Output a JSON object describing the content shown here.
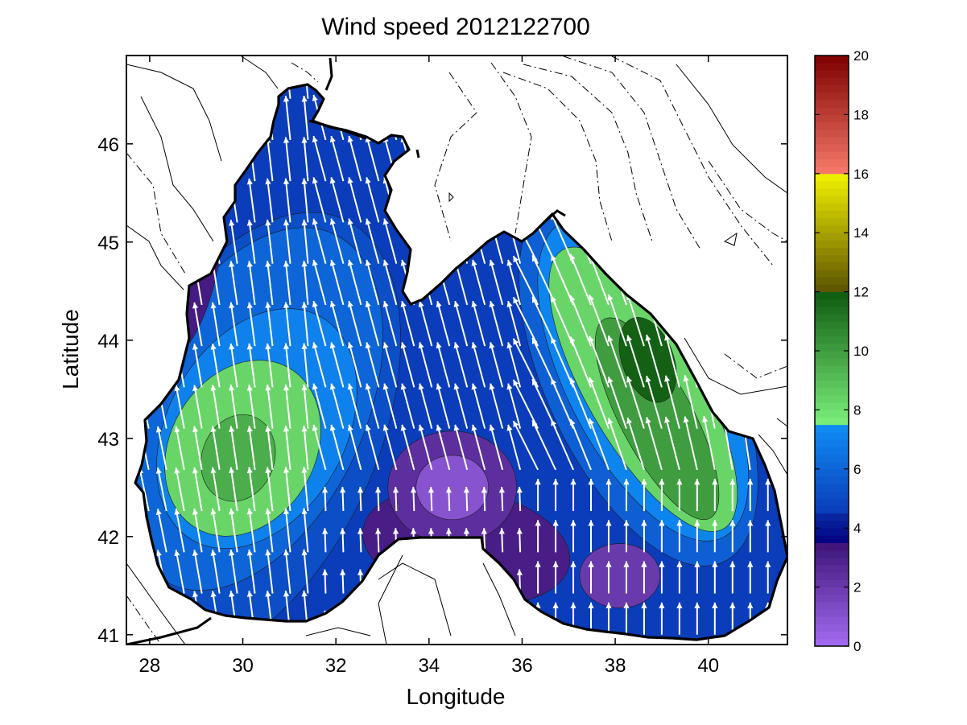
{
  "chart_data": {
    "type": "heatmap",
    "title": "Wind speed 2012122700",
    "xlabel": "Longitude",
    "ylabel": "Latitude",
    "xlim": [
      27.5,
      41.7
    ],
    "ylim": [
      40.9,
      46.9
    ],
    "xticks": [
      28,
      30,
      32,
      34,
      36,
      38,
      40
    ],
    "yticks": [
      41,
      42,
      43,
      44,
      45,
      46
    ],
    "grid": false,
    "colorbar": {
      "range": [
        0,
        20
      ],
      "ticks": [
        0,
        2,
        4,
        6,
        8,
        10,
        12,
        14,
        16,
        18,
        20
      ],
      "bands": [
        {
          "from": 0,
          "to": 3.5,
          "from_color": "#a56df2",
          "to_color": "#3c1378"
        },
        {
          "from": 3.5,
          "to": 4.5,
          "from_color": "#00007e",
          "to_color": "#0a2aa5"
        },
        {
          "from": 4.5,
          "to": 7.5,
          "from_color": "#0b3ab8",
          "to_color": "#0f8ff6"
        },
        {
          "from": 7.5,
          "to": 12,
          "from_color": "#7cf07c",
          "to_color": "#0f5a10"
        },
        {
          "from": 12,
          "to": 16,
          "from_color": "#5c5200",
          "to_color": "#f2f200"
        },
        {
          "from": 16,
          "to": 20,
          "from_color": "#f77a6a",
          "to_color": "#7e0000"
        }
      ]
    },
    "wind_maxima": [
      {
        "lon": 30.0,
        "lat": 42.8,
        "speed": 9.5
      },
      {
        "lon": 38.7,
        "lat": 43.8,
        "speed": 11.8
      },
      {
        "lon": 39.4,
        "lat": 42.8,
        "speed": 9.2
      }
    ],
    "wind_minima": [
      {
        "lon": 34.5,
        "lat": 42.5,
        "speed": 1.0
      },
      {
        "lon": 28.8,
        "lat": 44.4,
        "speed": 2.2
      },
      {
        "lon": 38.0,
        "lat": 41.6,
        "speed": 2.0
      }
    ],
    "wind_direction": "flow from south and south-southwest toward north over most of the basin; south-southeast over the eastern basin"
  }
}
